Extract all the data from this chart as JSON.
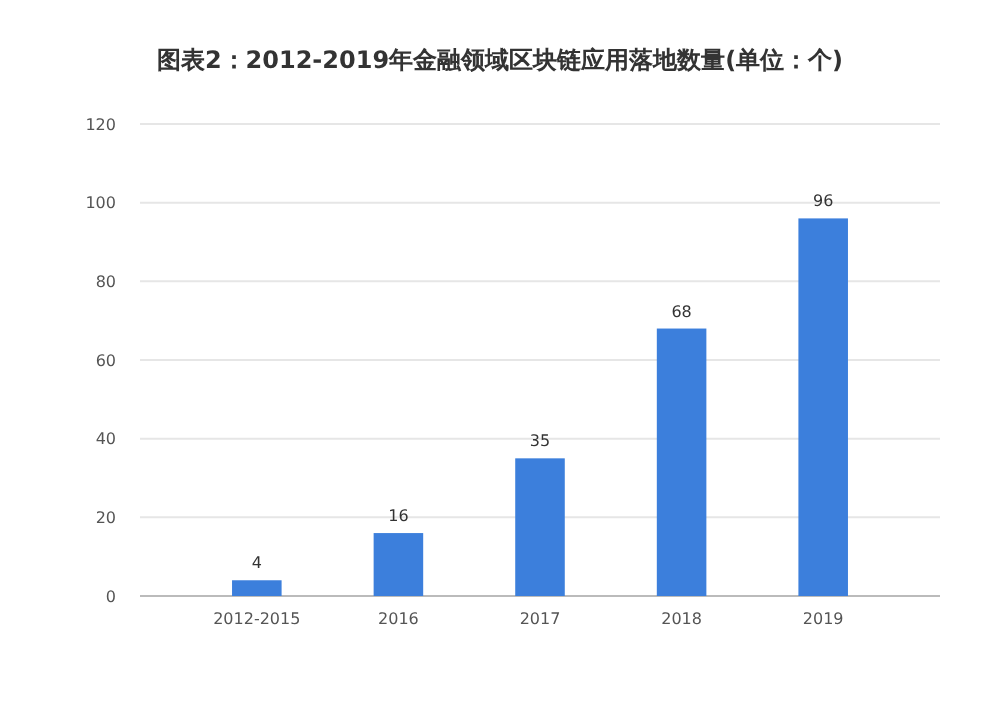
{
  "chart_data": {
    "type": "bar",
    "title": "图表2：2012-2019年金融领域区块链应用落地数量(单位：个)",
    "categories": [
      "2012-2015",
      "2016",
      "2017",
      "2018",
      "2019"
    ],
    "values": [
      4,
      16,
      35,
      68,
      96
    ],
    "color": "#3c7fdc",
    "ylim": [
      0,
      120
    ],
    "yticks": [
      0,
      20,
      40,
      60,
      80,
      100,
      120
    ],
    "grid": "y",
    "data_labels": true
  }
}
